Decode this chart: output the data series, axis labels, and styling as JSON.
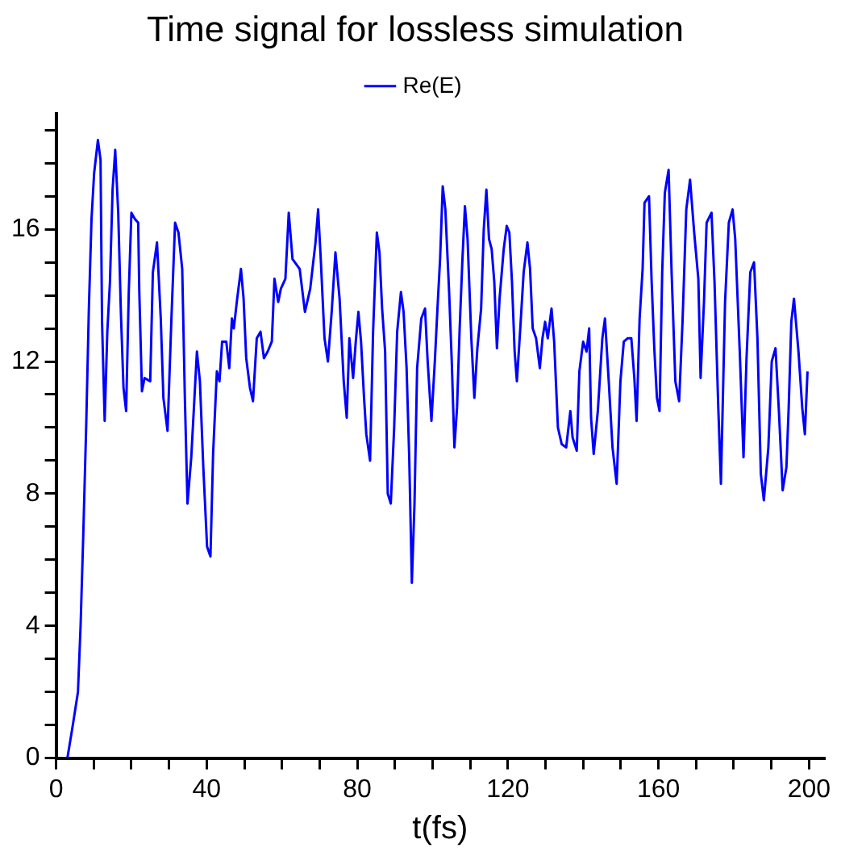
{
  "chart_data": {
    "type": "line",
    "title": "Time signal for lossless simulation",
    "xlabel": "t(fs)",
    "xlim": [
      0,
      204
    ],
    "ylim": [
      0,
      19.5
    ],
    "xticks": [
      0,
      {
        "value": 10,
        "label": null
      },
      40,
      {
        "value": 20,
        "label": null
      },
      {
        "value": 30,
        "label": null
      },
      {
        "value": 50,
        "label": null
      },
      {
        "value": 60,
        "label": null
      },
      {
        "value": 70,
        "label": null
      },
      80,
      {
        "value": 90,
        "label": null
      },
      {
        "value": 100,
        "label": null
      },
      {
        "value": 110,
        "label": null
      },
      120,
      {
        "value": 130,
        "label": null
      },
      {
        "value": 140,
        "label": null
      },
      {
        "value": 150,
        "label": null
      },
      160,
      {
        "value": 170,
        "label": null
      },
      {
        "value": 180,
        "label": null
      },
      {
        "value": 190,
        "label": null
      },
      200
    ],
    "yticks": [
      0,
      {
        "value": 1,
        "label": null
      },
      {
        "value": 2,
        "label": null
      },
      {
        "value": 3,
        "label": null
      },
      4,
      {
        "value": 5,
        "label": null
      },
      {
        "value": 6,
        "label": null
      },
      {
        "value": 7,
        "label": null
      },
      8,
      {
        "value": 9,
        "label": null
      },
      {
        "value": 10,
        "label": null
      },
      {
        "value": 11,
        "label": null
      },
      12,
      {
        "value": 13,
        "label": null
      },
      {
        "value": 14,
        "label": null
      },
      {
        "value": 15,
        "label": null
      },
      16,
      {
        "value": 17,
        "label": null
      },
      {
        "value": 18,
        "label": null
      },
      {
        "value": 19,
        "label": null
      }
    ],
    "grid": false,
    "legend": "top",
    "marker": "none",
    "line_style": "solid",
    "series": [
      {
        "name": "Re(E)",
        "color": "#0000ff",
        "x": [
          3,
          4.3,
          5.8,
          6.5,
          7.2,
          8,
          8.7,
          9.4,
          10.1,
          11.1,
          11.8,
          12.2,
          12.9,
          13.6,
          14.3,
          15,
          15.7,
          16.5,
          17.2,
          17.9,
          18.6,
          19.3,
          20,
          21,
          21.8,
          22.1,
          22.8,
          23.5,
          25,
          25.7,
          26.8,
          27.8,
          28.5,
          29.6,
          30.6,
          31.6,
          32.5,
          33.5,
          34.2,
          34.9,
          35.9,
          36.7,
          37.4,
          38.2,
          39.1,
          40.1,
          41,
          41.7,
          42.7,
          43.4,
          44.1,
          45.2,
          46,
          46.7,
          47.2,
          48.1,
          49.1,
          49.8,
          50.5,
          51.5,
          52.3,
          53.3,
          54.3,
          55.2,
          56.2,
          57.3,
          58,
          59,
          59.7,
          60.9,
          61.8,
          62.8,
          64.7,
          66.1,
          67.5,
          68.9,
          69.6,
          70.3,
          71.3,
          72.2,
          73.2,
          74.2,
          75.3,
          76.4,
          77.2,
          77.9,
          78.9,
          79.6,
          80.3,
          81,
          81.8,
          82.4,
          83.4,
          84.2,
          85.2,
          85.9,
          86.6,
          87.4,
          88.1,
          88.9,
          89.8,
          90.6,
          91.6,
          92.3,
          93.1,
          93.8,
          94.5,
          95.2,
          95.9,
          97,
          98,
          98.7,
          99.7,
          100.6,
          101.3,
          102,
          102.7,
          103.4,
          104.4,
          105.1,
          105.8,
          106.5,
          107.2,
          107.9,
          108.6,
          109.3,
          110.3,
          111.1,
          111.9,
          112.9,
          113.6,
          114.3,
          115,
          115.7,
          116.4,
          117.1,
          117.8,
          118.9,
          119.7,
          120.4,
          121.1,
          121.8,
          122.4,
          123.3,
          124.2,
          125.2,
          125.9,
          126.6,
          127.5,
          128.5,
          129.2,
          129.9,
          130.6,
          131.6,
          132.3,
          133.3,
          134.3,
          135.5,
          136.6,
          137.2,
          138.3,
          139,
          140,
          140.9,
          141.6,
          142.1,
          142.8,
          143.9,
          145.1,
          145.8,
          146.8,
          147.8,
          148.9,
          149.9,
          150.8,
          151.8,
          152.8,
          153.6,
          154.2,
          155,
          155.8,
          156.3,
          157.5,
          158.2,
          158.9,
          159.6,
          160.3,
          161,
          161.7,
          162.7,
          163.5,
          164.5,
          165.5,
          166.4,
          167.4,
          168.4,
          169.5,
          170.6,
          171.2,
          172.1,
          172.8,
          174.1,
          174.9,
          175.9,
          176.6,
          177.7,
          178.7,
          179.7,
          180.4,
          181.6,
          182.6,
          183.4,
          184.4,
          185.4,
          186.3,
          187.2,
          188,
          189.2,
          190.1,
          191.1,
          192,
          193,
          194,
          194.6,
          195.3,
          196,
          197.2,
          198.2,
          198.9,
          199.6
        ],
        "values": [
          0,
          0.9,
          2,
          4,
          6.7,
          10.1,
          13.6,
          16.3,
          17.7,
          18.7,
          18.1,
          13.2,
          10.2,
          12.9,
          14.4,
          17.2,
          18.4,
          16.5,
          13.5,
          11.2,
          10.5,
          14.1,
          16.5,
          16.3,
          16.2,
          14.1,
          11.1,
          11.5,
          11.4,
          14.7,
          15.6,
          13.3,
          10.9,
          9.9,
          13.2,
          16.2,
          15.9,
          14.8,
          10.9,
          7.7,
          9.1,
          10.8,
          12.3,
          11.4,
          8.8,
          6.4,
          6.1,
          9.2,
          11.7,
          11.4,
          12.6,
          12.6,
          11.8,
          13.3,
          13,
          13.9,
          14.8,
          13.9,
          12.1,
          11.2,
          10.8,
          12.7,
          12.9,
          12.1,
          12.3,
          12.6,
          14.5,
          13.8,
          14.2,
          14.5,
          16.5,
          15.1,
          14.8,
          13.5,
          14.2,
          15.6,
          16.6,
          15.1,
          12.7,
          12,
          13.5,
          15.3,
          13.9,
          11.4,
          10.3,
          12.7,
          11.5,
          12.6,
          13.5,
          12.6,
          10.9,
          9.8,
          9,
          12.9,
          15.9,
          15.3,
          13.6,
          12.3,
          8,
          7.7,
          10,
          12.9,
          14.1,
          13.5,
          11.8,
          9.1,
          5.3,
          7.7,
          11.8,
          13.3,
          13.6,
          12,
          10.2,
          12,
          13.6,
          15.1,
          17.3,
          16.6,
          14.1,
          12,
          9.4,
          10.6,
          13,
          15,
          16.7,
          15.7,
          12.7,
          10.9,
          12.4,
          13.6,
          16,
          17.2,
          15.7,
          15.4,
          14.4,
          12.4,
          13.9,
          15.4,
          16.1,
          15.9,
          14.4,
          12.3,
          11.4,
          13,
          14.7,
          15.6,
          14.8,
          13,
          12.7,
          11.8,
          12.7,
          13.2,
          12.7,
          13.6,
          12.6,
          10,
          9.5,
          9.4,
          10.5,
          9.7,
          9.3,
          11.7,
          12.6,
          12.3,
          13,
          10.3,
          9.2,
          10.5,
          12.7,
          13.3,
          11.4,
          9.4,
          8.3,
          11.4,
          12.6,
          12.7,
          12.7,
          11.5,
          10.2,
          13.3,
          14.8,
          16.8,
          17,
          14.4,
          12.4,
          10.9,
          10.5,
          14.7,
          17.1,
          17.8,
          14.7,
          11.4,
          10.8,
          13.2,
          16.6,
          17.5,
          15.9,
          14.5,
          11.5,
          13.8,
          16.2,
          16.5,
          14.4,
          10.6,
          8.3,
          13.8,
          16.2,
          16.6,
          15.7,
          12.3,
          9.1,
          12.1,
          14.7,
          15,
          12.7,
          8.6,
          7.8,
          9.4,
          12,
          12.4,
          10.5,
          8.1,
          8.8,
          10.6,
          13.2,
          13.9,
          12.3,
          10.6,
          9.8,
          11.7
        ]
      }
    ]
  }
}
